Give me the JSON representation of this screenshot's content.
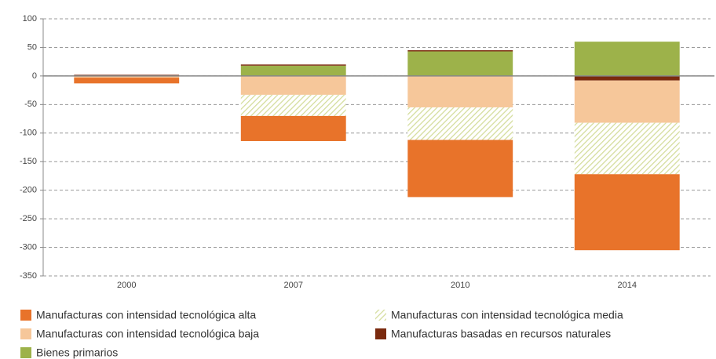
{
  "chart_data": {
    "type": "stacked_bar",
    "categories": [
      "2000",
      "2007",
      "2010",
      "2014"
    ],
    "series": [
      {
        "name": "Manufacturas con intensidad tecnológica alta",
        "color": "#e8732a",
        "values": [
          -10,
          -44,
          -100,
          -133
        ]
      },
      {
        "name": "Manufacturas con intensidad tecnológica media",
        "color": "#d3dc9a",
        "hatch": true,
        "values": [
          0,
          -37,
          -57,
          -90
        ]
      },
      {
        "name": "Manufacturas con intensidad tecnológica baja",
        "color": "#f6c79a",
        "values": [
          -3,
          -33,
          -55,
          -74
        ]
      },
      {
        "name": "Manufacturas basadas en recursos naturales",
        "color": "#7a2a0e",
        "values": [
          2,
          2,
          2,
          -8
        ]
      },
      {
        "name": "Bienes primarios",
        "color": "#9db24a",
        "values": [
          0,
          18,
          43,
          60
        ]
      }
    ],
    "ylim": [
      -350,
      100
    ],
    "yticks": [
      -350,
      -300,
      -250,
      -200,
      -150,
      -100,
      -50,
      0,
      50,
      100
    ],
    "grid": true
  }
}
